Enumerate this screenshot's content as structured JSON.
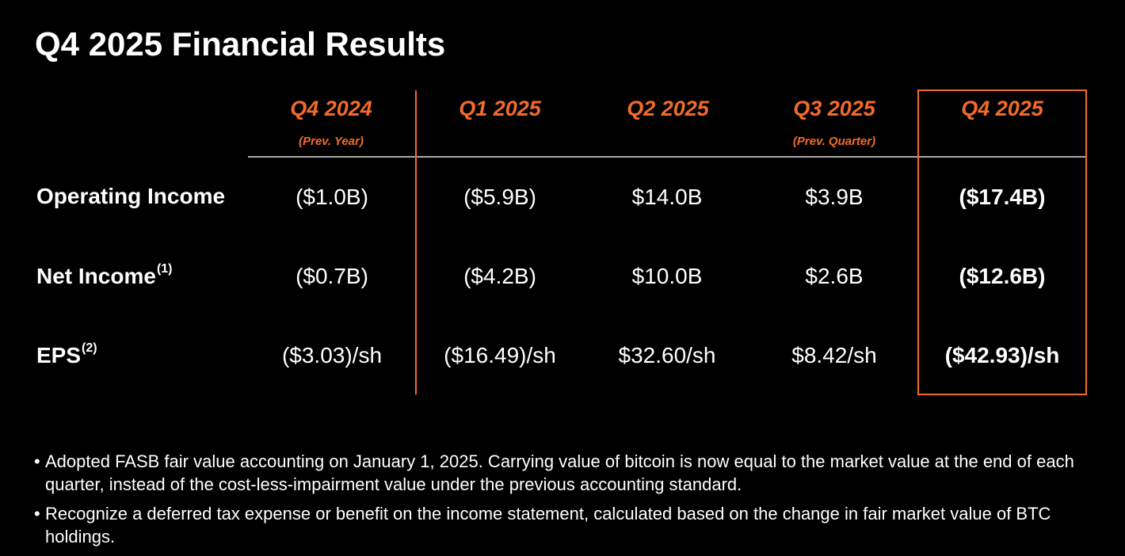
{
  "title": "Q4 2025 Financial Results",
  "accent_color": "#f26b2a",
  "columns": [
    {
      "label": "Q4 2024",
      "sublabel": "(Prev. Year)"
    },
    {
      "label": "Q1 2025",
      "sublabel": ""
    },
    {
      "label": "Q2 2025",
      "sublabel": ""
    },
    {
      "label": "Q3 2025",
      "sublabel": "(Prev. Quarter)"
    },
    {
      "label": "Q4 2025",
      "sublabel": ""
    }
  ],
  "rows": [
    {
      "label": "Operating Income",
      "footnote": "",
      "values": [
        "($1.0B)",
        "($5.9B)",
        "$14.0B",
        "$3.9B",
        "($17.4B)"
      ]
    },
    {
      "label": "Net Income",
      "footnote": "(1)",
      "values": [
        "($0.7B)",
        "($4.2B)",
        "$10.0B",
        "$2.6B",
        "($12.6B)"
      ]
    },
    {
      "label": "EPS",
      "footnote": "(2)",
      "values": [
        "($3.03)/sh",
        "($16.49)/sh",
        "$32.60/sh",
        "$8.42/sh",
        "($42.93)/sh"
      ]
    }
  ],
  "notes": [
    {
      "bullet": "•",
      "text": "Adopted FASB fair value accounting on January 1, 2025. Carrying value of bitcoin is now equal to the market value at the end of each quarter, instead of the cost-less-impairment value under the previous accounting standard."
    },
    {
      "bullet": "•",
      "text": "Recognize a deferred tax expense or benefit on the income statement, calculated based on the change in fair market value of BTC holdings."
    }
  ]
}
